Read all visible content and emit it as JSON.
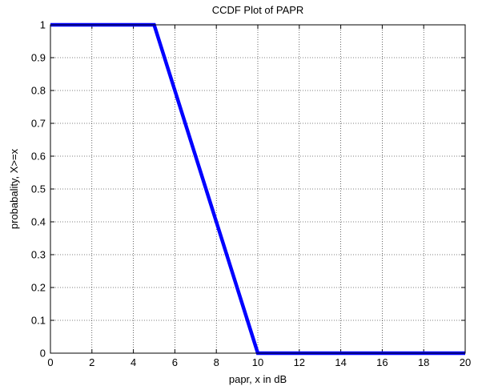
{
  "chart_data": {
    "type": "line",
    "title": "CCDF Plot of PAPR",
    "xlabel": "papr, x in dB",
    "ylabel": "probabality, X>=x",
    "xlim": [
      0,
      20
    ],
    "ylim": [
      0,
      1
    ],
    "x_ticks": [
      0,
      2,
      4,
      6,
      8,
      10,
      12,
      14,
      16,
      18,
      20
    ],
    "y_ticks": [
      0,
      0.1,
      0.2,
      0.3,
      0.4,
      0.5,
      0.6,
      0.7,
      0.8,
      0.9,
      1
    ],
    "x_tick_labels": [
      "0",
      "2",
      "4",
      "6",
      "8",
      "10",
      "12",
      "14",
      "16",
      "18",
      "20"
    ],
    "y_tick_labels": [
      "0",
      "0.1",
      "0.2",
      "0.3",
      "0.4",
      "0.5",
      "0.6",
      "0.7",
      "0.8",
      "0.9",
      "1"
    ],
    "grid": true,
    "grid_style": "dotted",
    "series": [
      {
        "color": "#0000ff",
        "x": [
          0,
          1,
          2,
          3,
          4,
          5,
          6,
          7,
          8,
          9,
          10,
          11,
          12,
          13,
          14,
          15,
          16,
          17,
          18,
          19,
          20
        ],
        "y": [
          1,
          1,
          1,
          1,
          1,
          1,
          0.8,
          0.6,
          0.4,
          0.2,
          0,
          0,
          0,
          0,
          0,
          0,
          0,
          0,
          0,
          0,
          0
        ]
      }
    ]
  }
}
